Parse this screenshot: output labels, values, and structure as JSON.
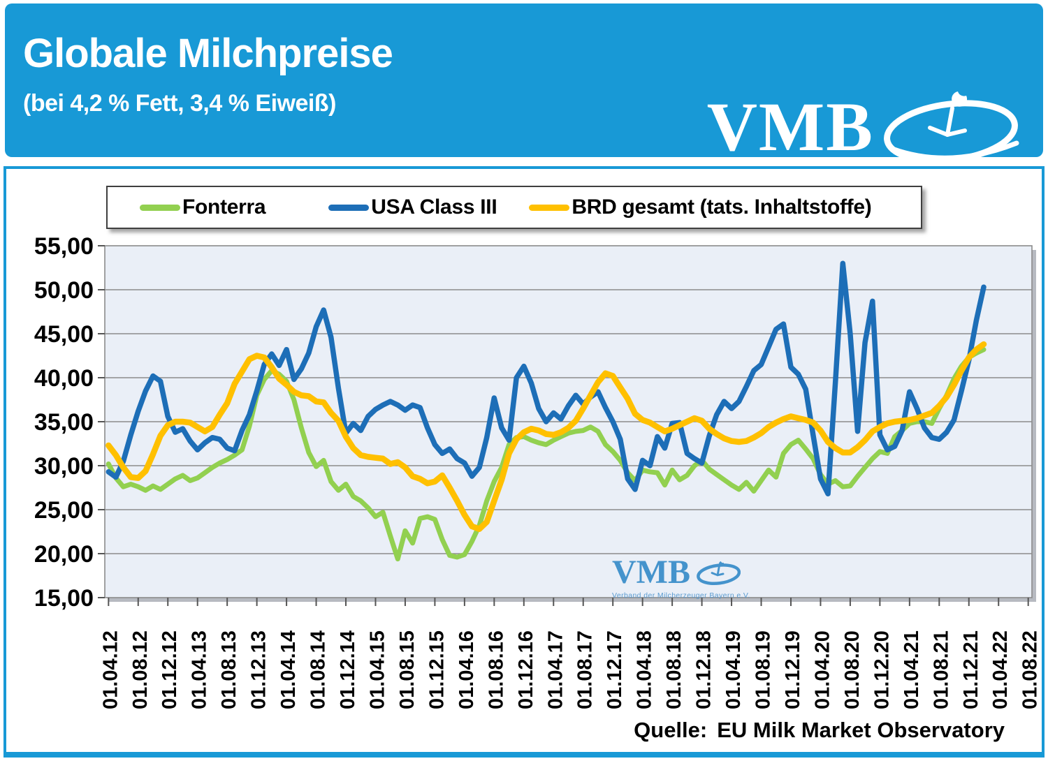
{
  "header": {
    "title": "Globale Milchpreise",
    "subtitle": "(bei 4,2 % Fett, 3,4 % Eiweiß)",
    "logo_text": "VMB"
  },
  "watermark": {
    "logo_text": "VMB",
    "caption": "Verband der Milcherzeuger Bayern e.V."
  },
  "source": {
    "label": "Quelle:",
    "text": "EU Milk Market Observatory"
  },
  "colors": {
    "accent_blue": "#1899D6",
    "plot_background": "#EAEFF7",
    "gridline": "#8B8B8B"
  },
  "chart_data": {
    "type": "line",
    "title": "Globale Milchpreise (bei 4,2 % Fett, 3,4 % Eiweiß)",
    "xlabel": "",
    "ylabel": "",
    "grid": true,
    "legend_position": "top",
    "x_frequency": "monthly",
    "x_first": "01.04.12",
    "n_points": 119,
    "x_slots": 125,
    "x_ticks": [
      "01.04.12",
      "01.08.12",
      "01.12.12",
      "01.04.13",
      "01.08.13",
      "01.12.13",
      "01.04.14",
      "01.08.14",
      "01.12.14",
      "01.04.15",
      "01.08.15",
      "01.12.15",
      "01.04.16",
      "01.08.16",
      "01.12.16",
      "01.04.17",
      "01.08.17",
      "01.12.17",
      "01.04.18",
      "01.08.18",
      "01.12.18",
      "01.04.19",
      "01.08.19",
      "01.12.19",
      "01.04.20",
      "01.08.20",
      "01.12.20",
      "01.04.21",
      "01.08.21",
      "01.12.21",
      "01.04.22",
      "01.08.22"
    ],
    "y_axis": {
      "range": [
        15,
        55
      ],
      "step": 5,
      "tick_labels": [
        "55,00",
        "50,00",
        "45,00",
        "40,00",
        "35,00",
        "30,00",
        "25,00",
        "20,00",
        "15,00"
      ]
    },
    "series": [
      {
        "name": "Fonterra",
        "color": "#92D050",
        "values": [
          30.2,
          28.6,
          27.6,
          27.9,
          27.6,
          27.2,
          27.7,
          27.3,
          27.9,
          28.5,
          28.9,
          28.3,
          28.6,
          29.2,
          29.8,
          30.3,
          30.7,
          31.2,
          31.8,
          34.5,
          38.0,
          39.8,
          40.8,
          40.4,
          39.6,
          37.5,
          34.3,
          31.5,
          29.9,
          30.6,
          28.2,
          27.2,
          27.9,
          26.5,
          26.0,
          25.2,
          24.2,
          24.7,
          22.0,
          19.4,
          22.6,
          21.2,
          24.0,
          24.2,
          23.9,
          21.6,
          19.8,
          19.6,
          19.9,
          21.4,
          23.2,
          26.0,
          28.2,
          29.8,
          32.4,
          33.2,
          33.3,
          32.9,
          32.6,
          32.4,
          32.9,
          33.3,
          33.7,
          33.9,
          34.0,
          34.4,
          33.9,
          32.4,
          31.6,
          30.6,
          29.2,
          28.3,
          29.5,
          29.3,
          29.2,
          27.8,
          29.5,
          28.4,
          28.9,
          30.0,
          30.6,
          29.6,
          29.0,
          28.4,
          27.8,
          27.3,
          28.1,
          27.1,
          28.3,
          29.5,
          28.7,
          31.4,
          32.4,
          32.9,
          31.9,
          30.8,
          29.0,
          27.9,
          28.3,
          27.6,
          27.7,
          28.8,
          29.8,
          30.8,
          31.6,
          31.4,
          33.3,
          34.0,
          34.8,
          35.0,
          35.0,
          34.8,
          36.5,
          38.0,
          39.9,
          41.3,
          42.3,
          42.8,
          43.2
        ]
      },
      {
        "name": "USA Class III",
        "color": "#1D6EB7",
        "values": [
          29.3,
          28.7,
          30.5,
          33.5,
          36.2,
          38.5,
          40.2,
          39.6,
          35.6,
          33.8,
          34.2,
          32.8,
          31.8,
          32.6,
          33.2,
          33.0,
          32.0,
          31.7,
          34.0,
          35.8,
          38.5,
          41.5,
          42.7,
          41.4,
          43.2,
          39.8,
          41.0,
          42.8,
          45.8,
          47.7,
          44.6,
          38.8,
          33.7,
          34.8,
          34.0,
          35.6,
          36.4,
          36.9,
          37.3,
          36.9,
          36.3,
          36.9,
          36.6,
          34.3,
          32.4,
          31.4,
          31.9,
          30.8,
          30.3,
          28.8,
          29.8,
          33.2,
          37.7,
          34.3,
          32.9,
          40.0,
          41.3,
          39.4,
          36.5,
          35.0,
          36.0,
          35.3,
          36.8,
          38.0,
          37.0,
          37.8,
          38.4,
          36.6,
          35.0,
          33.0,
          28.5,
          27.3,
          30.6,
          30.0,
          33.3,
          32.0,
          34.8,
          34.9,
          31.4,
          30.8,
          30.3,
          33.4,
          35.8,
          37.3,
          36.5,
          37.3,
          39.0,
          40.8,
          41.5,
          43.5,
          45.5,
          46.1,
          41.2,
          40.4,
          38.7,
          33.5,
          28.5,
          26.8,
          39.5,
          53.0,
          45.0,
          33.9,
          44.0,
          48.7,
          33.5,
          31.8,
          32.2,
          34.0,
          38.4,
          36.5,
          34.3,
          33.2,
          33.0,
          33.8,
          35.2,
          38.5,
          42.0,
          46.5,
          50.3
        ]
      },
      {
        "name": "BRD gesamt (tats. Inhaltstoffe)",
        "color": "#FFC000",
        "values": [
          32.3,
          31.2,
          29.8,
          28.7,
          28.6,
          29.4,
          31.3,
          33.4,
          34.6,
          35.0,
          35.0,
          34.9,
          34.4,
          33.9,
          34.4,
          35.8,
          37.1,
          39.3,
          40.7,
          42.1,
          42.5,
          42.3,
          41.2,
          39.9,
          39.2,
          38.4,
          38.0,
          37.9,
          37.3,
          37.2,
          36.0,
          35.1,
          33.3,
          32.0,
          31.2,
          31.0,
          30.9,
          30.8,
          30.2,
          30.4,
          29.8,
          28.8,
          28.5,
          28.0,
          28.2,
          28.9,
          27.5,
          26.0,
          24.4,
          23.1,
          22.8,
          23.6,
          26.0,
          28.4,
          31.4,
          33.0,
          33.8,
          34.2,
          34.0,
          33.6,
          33.5,
          33.8,
          34.3,
          35.1,
          36.5,
          38.0,
          39.5,
          40.5,
          40.2,
          38.9,
          37.6,
          35.9,
          35.2,
          34.9,
          34.4,
          33.9,
          34.2,
          34.6,
          35.0,
          35.4,
          35.1,
          34.2,
          33.6,
          33.1,
          32.8,
          32.7,
          32.8,
          33.2,
          33.7,
          34.4,
          34.9,
          35.3,
          35.6,
          35.4,
          35.2,
          34.9,
          34.0,
          32.7,
          32.0,
          31.5,
          31.5,
          32.1,
          32.9,
          33.9,
          34.4,
          34.8,
          35.0,
          35.1,
          35.2,
          35.4,
          35.7,
          36.0,
          36.8,
          37.8,
          39.2,
          40.8,
          42.3,
          43.2,
          43.8
        ]
      }
    ]
  }
}
